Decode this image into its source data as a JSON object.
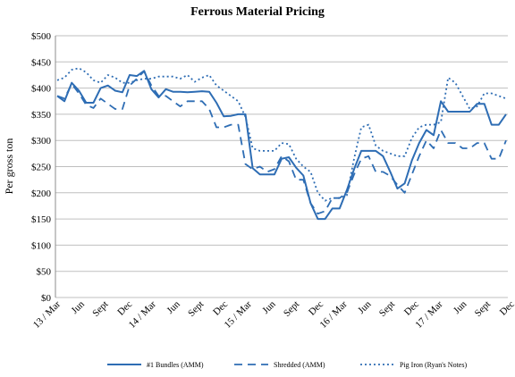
{
  "chart_data": {
    "type": "line",
    "title": "Ferrous Material Pricing",
    "xlabel": "",
    "ylabel": "Per gross ton",
    "ylim": [
      0,
      500
    ],
    "yticks": [
      "$0",
      "$50",
      "$100",
      "$150",
      "$200",
      "$250",
      "$300",
      "$350",
      "$400",
      "$450",
      "$500"
    ],
    "xticks": [
      "13 / Mar",
      "Jun",
      "Sept",
      "Dec",
      "14 / Mar",
      "Jun",
      "Sept",
      "Dec",
      "15 / Mar",
      "Jun",
      "Sept",
      "Dec",
      "16 / Mar",
      "Jun",
      "Sept",
      "Dec",
      "17 / Mar",
      "Jun",
      "Sept",
      "Dec"
    ],
    "grid": "horizontal",
    "legend": "bottom",
    "series": [
      {
        "name": "#1 Bundles (AMM)",
        "style": "solid",
        "color": "#2E6DB4",
        "values": [
          385,
          375,
          410,
          395,
          372,
          372,
          400,
          405,
          395,
          392,
          425,
          423,
          433,
          398,
          382,
          398,
          393,
          393,
          392,
          393,
          394,
          393,
          372,
          346,
          347,
          350,
          350,
          247,
          235,
          235,
          235,
          265,
          268,
          248,
          233,
          180,
          150,
          150,
          170,
          170,
          205,
          245,
          280,
          280,
          280,
          270,
          240,
          208,
          218,
          262,
          295,
          320,
          310,
          375,
          355,
          355,
          355,
          355,
          370,
          370,
          330,
          330,
          350
        ]
      },
      {
        "name": "Shredded (AMM)",
        "style": "dashed",
        "color": "#2E6DB4",
        "values": [
          385,
          380,
          408,
          390,
          368,
          362,
          380,
          370,
          360,
          360,
          405,
          418,
          432,
          405,
          385,
          385,
          375,
          365,
          375,
          375,
          375,
          360,
          325,
          325,
          330,
          330,
          255,
          245,
          250,
          240,
          245,
          270,
          260,
          225,
          225,
          180,
          160,
          165,
          190,
          190,
          200,
          235,
          265,
          270,
          240,
          240,
          232,
          215,
          200,
          235,
          270,
          300,
          285,
          320,
          295,
          295,
          285,
          285,
          295,
          295,
          265,
          265,
          300
        ]
      },
      {
        "name": "Pig Iron (Ryan's Notes)",
        "style": "dotted",
        "color": "#2E6DB4",
        "values": [
          415,
          420,
          435,
          438,
          430,
          415,
          410,
          425,
          420,
          410,
          410,
          415,
          418,
          418,
          422,
          422,
          422,
          418,
          425,
          412,
          420,
          425,
          405,
          395,
          385,
          375,
          345,
          285,
          280,
          280,
          280,
          295,
          293,
          265,
          250,
          240,
          200,
          185,
          190,
          190,
          195,
          265,
          325,
          330,
          290,
          280,
          275,
          270,
          270,
          305,
          325,
          330,
          330,
          335,
          420,
          410,
          385,
          360,
          365,
          390,
          390,
          385,
          380
        ]
      }
    ]
  }
}
